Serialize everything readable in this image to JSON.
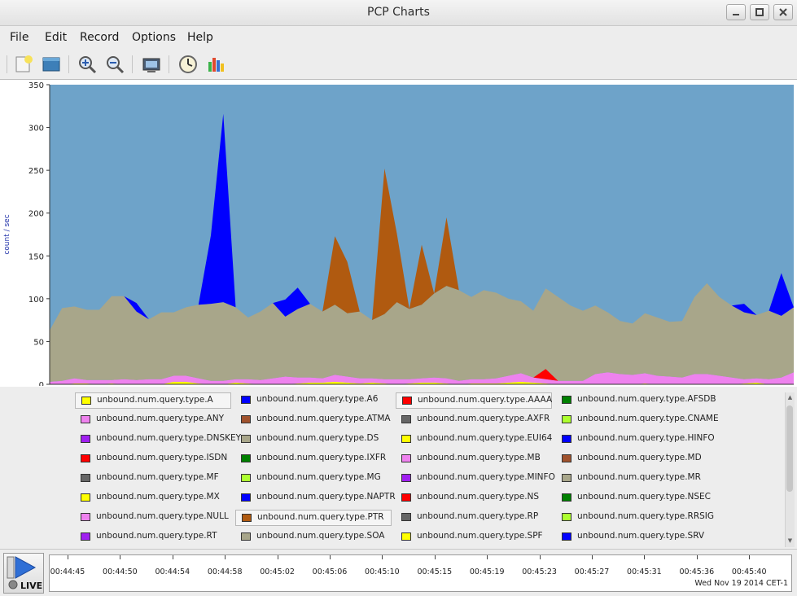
{
  "window": {
    "title": "PCP Charts",
    "controls": [
      "minimize",
      "maximize",
      "close"
    ]
  },
  "menu": [
    "File",
    "Edit",
    "Record",
    "Options",
    "Help"
  ],
  "toolbar": [
    {
      "name": "new-chart-icon"
    },
    {
      "name": "open-view-icon"
    },
    {
      "name": "zoom-in-icon"
    },
    {
      "name": "zoom-out-icon"
    },
    {
      "name": "export-image-icon"
    },
    {
      "name": "time-controls-icon"
    },
    {
      "name": "chart-stats-icon"
    }
  ],
  "chart_data": {
    "type": "area",
    "stacked": true,
    "ylabel": "count / sec",
    "ylim": [
      0,
      350
    ],
    "yticks": [
      0,
      50,
      100,
      150,
      200,
      250,
      300,
      350
    ],
    "background": "#6ea3c9",
    "n_points": 61,
    "series": [
      {
        "name": "unbound.num.query.type.A",
        "color": "#ffff00",
        "values": [
          0,
          0,
          1,
          1,
          0,
          1,
          0,
          0,
          0,
          0,
          3,
          3,
          1,
          0,
          0,
          2,
          1,
          0,
          0,
          0,
          1,
          2,
          2,
          3,
          2,
          1,
          2,
          1,
          0,
          1,
          2,
          2,
          1,
          0,
          1,
          1,
          1,
          2,
          3,
          2,
          1,
          0,
          0,
          0,
          0,
          0,
          0,
          0,
          1,
          0,
          0,
          0,
          0,
          0,
          0,
          0,
          1,
          2,
          0,
          0,
          0
        ]
      },
      {
        "name": "unbound.num.query.type.ANY",
        "color": "#ee82ee",
        "values": [
          3,
          4,
          6,
          4,
          5,
          4,
          6,
          5,
          6,
          6,
          7,
          7,
          6,
          4,
          4,
          4,
          5,
          5,
          7,
          9,
          7,
          6,
          5,
          8,
          7,
          6,
          5,
          5,
          6,
          5,
          5,
          6,
          6,
          4,
          5,
          5,
          6,
          8,
          10,
          6,
          5,
          4,
          4,
          4,
          12,
          14,
          12,
          11,
          12,
          10,
          9,
          8,
          12,
          12,
          10,
          8,
          5,
          5,
          6,
          8,
          14
        ]
      },
      {
        "name": "unbound.num.query.type.ATMA",
        "color": "#8b4513",
        "values": [
          0,
          0,
          0,
          0,
          0,
          0,
          0,
          0,
          0,
          0,
          0,
          0,
          0,
          0,
          0,
          0,
          0,
          0,
          0,
          0,
          0,
          0,
          0,
          0,
          0,
          0,
          0,
          0,
          0,
          0,
          0,
          0,
          0,
          0,
          0,
          0,
          0,
          0,
          0,
          0,
          0,
          0,
          0,
          0,
          0,
          0,
          0,
          0,
          0,
          0,
          0,
          0,
          0,
          0,
          0,
          0,
          0,
          0,
          0,
          0,
          0
        ]
      },
      {
        "name": "unbound.num.query.type.AAAA",
        "color": "#ff0000",
        "values": [
          0,
          0,
          0,
          0,
          0,
          0,
          0,
          0,
          0,
          0,
          0,
          0,
          0,
          0,
          0,
          0,
          0,
          0,
          0,
          0,
          0,
          0,
          0,
          0,
          0,
          0,
          0,
          0,
          0,
          0,
          0,
          0,
          0,
          0,
          0,
          0,
          0,
          0,
          0,
          0,
          12,
          0,
          0,
          0,
          0,
          0,
          0,
          0,
          0,
          0,
          0,
          0,
          0,
          0,
          0,
          0,
          0,
          0,
          0,
          0,
          0
        ]
      },
      {
        "name": "unbound.num.query.type.SOA",
        "color": "#a8a68a",
        "values": [
          60,
          85,
          84,
          82,
          82,
          98,
          97,
          80,
          70,
          78,
          74,
          80,
          86,
          90,
          92,
          84,
          72,
          80,
          88,
          70,
          80,
          86,
          78,
          82,
          74,
          78,
          68,
          76,
          90,
          82,
          86,
          98,
          108,
          106,
          96,
          104,
          100,
          90,
          84,
          78,
          94,
          98,
          88,
          82,
          80,
          70,
          62,
          60,
          70,
          68,
          64,
          66,
          90,
          106,
          92,
          84,
          78,
          74,
          80,
          72,
          76
        ]
      },
      {
        "name": "unbound.num.query.type.PTR",
        "color": "#b05a10",
        "values": [
          0,
          0,
          0,
          0,
          0,
          0,
          0,
          0,
          0,
          0,
          0,
          0,
          0,
          0,
          0,
          0,
          0,
          0,
          0,
          0,
          0,
          0,
          0,
          80,
          60,
          0,
          0,
          170,
          80,
          0,
          70,
          0,
          80,
          0,
          0,
          0,
          0,
          0,
          0,
          0,
          0,
          0,
          0,
          0,
          0,
          0,
          0,
          0,
          0,
          0,
          0,
          0,
          0,
          0,
          0,
          0,
          0,
          0,
          0,
          0,
          0
        ]
      },
      {
        "name": "unbound.num.query.type.SRV",
        "color": "#0000ff",
        "values": [
          0,
          0,
          0,
          0,
          0,
          0,
          0,
          10,
          0,
          0,
          0,
          0,
          0,
          80,
          220,
          0,
          0,
          0,
          0,
          20,
          25,
          0,
          0,
          0,
          0,
          0,
          0,
          0,
          0,
          0,
          0,
          0,
          0,
          0,
          0,
          0,
          0,
          0,
          0,
          0,
          0,
          0,
          0,
          0,
          0,
          0,
          0,
          0,
          0,
          0,
          0,
          0,
          0,
          0,
          0,
          0,
          10,
          0,
          0,
          50,
          0
        ]
      }
    ],
    "x_ticks": [
      "00:44:45",
      "00:44:50",
      "00:44:54",
      "00:44:58",
      "00:45:02",
      "00:45:06",
      "00:45:10",
      "00:45:15",
      "00:45:19",
      "00:45:23",
      "00:45:27",
      "00:45:31",
      "00:45:36",
      "00:45:40"
    ],
    "date": "Wed Nov 19 2014 CET-1"
  },
  "legend": [
    {
      "label": "unbound.num.query.type.A",
      "color": "#ffff00",
      "boxed": true
    },
    {
      "label": "unbound.num.query.type.A6",
      "color": "#0000ff",
      "boxed": false
    },
    {
      "label": "unbound.num.query.type.AAAA",
      "color": "#ff0000",
      "boxed": true
    },
    {
      "label": "unbound.num.query.type.AFSDB",
      "color": "#008000",
      "boxed": false
    },
    {
      "label": "unbound.num.query.type.ANY",
      "color": "#ee82ee",
      "boxed": false
    },
    {
      "label": "unbound.num.query.type.ATMA",
      "color": "#a0522d",
      "boxed": false
    },
    {
      "label": "unbound.num.query.type.AXFR",
      "color": "#666666",
      "boxed": false
    },
    {
      "label": "unbound.num.query.type.CNAME",
      "color": "#adff2f",
      "boxed": false
    },
    {
      "label": "unbound.num.query.type.DNSKEY",
      "color": "#a020f0",
      "boxed": false
    },
    {
      "label": "unbound.num.query.type.DS",
      "color": "#a8a68a",
      "boxed": false
    },
    {
      "label": "unbound.num.query.type.EUI64",
      "color": "#ffff00",
      "boxed": false
    },
    {
      "label": "unbound.num.query.type.HINFO",
      "color": "#0000ff",
      "boxed": false
    },
    {
      "label": "unbound.num.query.type.ISDN",
      "color": "#ff0000",
      "boxed": false
    },
    {
      "label": "unbound.num.query.type.IXFR",
      "color": "#008000",
      "boxed": false
    },
    {
      "label": "unbound.num.query.type.MB",
      "color": "#ee82ee",
      "boxed": false
    },
    {
      "label": "unbound.num.query.type.MD",
      "color": "#a0522d",
      "boxed": false
    },
    {
      "label": "unbound.num.query.type.MF",
      "color": "#666666",
      "boxed": false
    },
    {
      "label": "unbound.num.query.type.MG",
      "color": "#adff2f",
      "boxed": false
    },
    {
      "label": "unbound.num.query.type.MINFO",
      "color": "#a020f0",
      "boxed": false
    },
    {
      "label": "unbound.num.query.type.MR",
      "color": "#a8a68a",
      "boxed": false
    },
    {
      "label": "unbound.num.query.type.MX",
      "color": "#ffff00",
      "boxed": false
    },
    {
      "label": "unbound.num.query.type.NAPTR",
      "color": "#0000ff",
      "boxed": false
    },
    {
      "label": "unbound.num.query.type.NS",
      "color": "#ff0000",
      "boxed": false
    },
    {
      "label": "unbound.num.query.type.NSEC",
      "color": "#008000",
      "boxed": false
    },
    {
      "label": "unbound.num.query.type.NULL",
      "color": "#ee82ee",
      "boxed": false
    },
    {
      "label": "unbound.num.query.type.PTR",
      "color": "#b05a10",
      "boxed": true
    },
    {
      "label": "unbound.num.query.type.RP",
      "color": "#666666",
      "boxed": false
    },
    {
      "label": "unbound.num.query.type.RRSIG",
      "color": "#adff2f",
      "boxed": false
    },
    {
      "label": "unbound.num.query.type.RT",
      "color": "#a020f0",
      "boxed": false
    },
    {
      "label": "unbound.num.query.type.SOA",
      "color": "#a8a68a",
      "boxed": false
    },
    {
      "label": "unbound.num.query.type.SPF",
      "color": "#ffff00",
      "boxed": false
    },
    {
      "label": "unbound.num.query.type.SRV",
      "color": "#0000ff",
      "boxed": false
    }
  ],
  "live": {
    "label": "LIVE"
  }
}
